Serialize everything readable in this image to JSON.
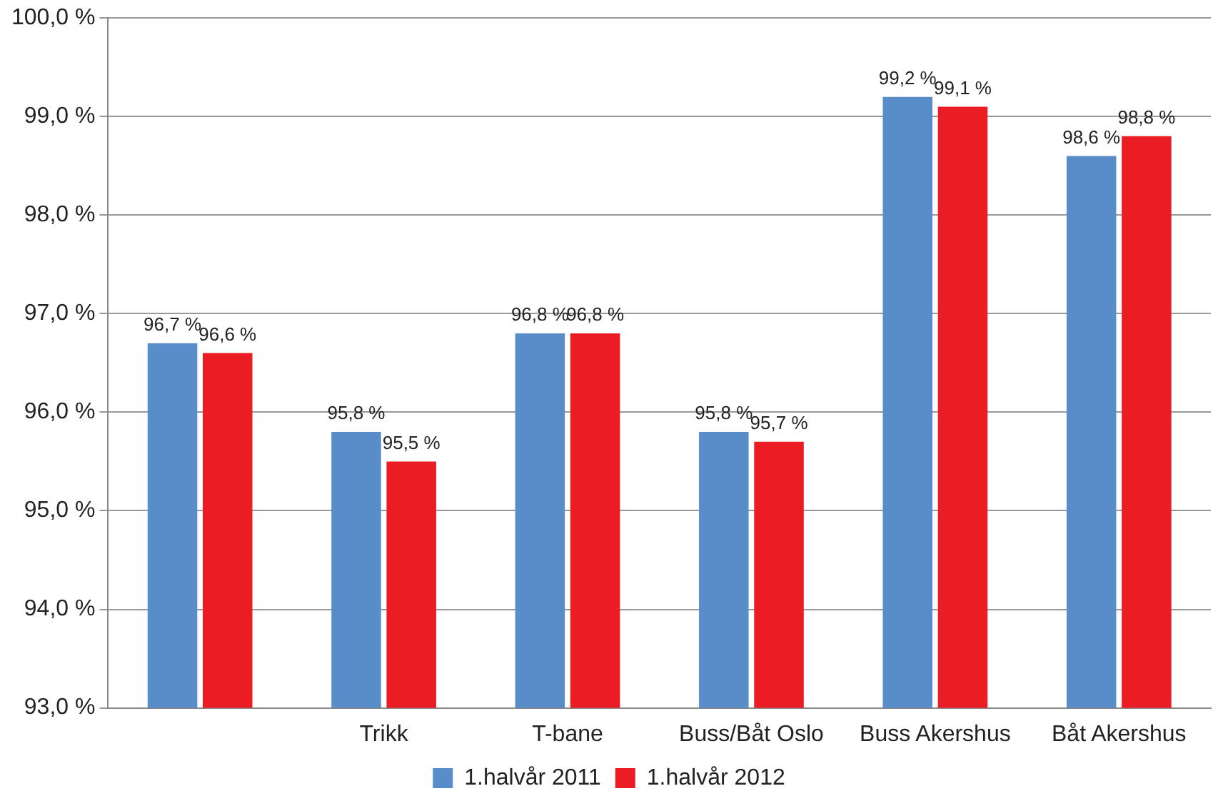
{
  "chart_data": {
    "type": "bar",
    "categories": [
      null,
      "Trikk",
      "T-bane",
      "Buss/Båt Oslo",
      "Buss Akershus",
      "Båt Akershus"
    ],
    "series": [
      {
        "name": "1.halvår 2011",
        "color": "#588dca",
        "values": [
          96.7,
          95.8,
          96.8,
          95.8,
          99.2,
          98.6
        ],
        "value_labels": [
          "96,7 %",
          "95,8 %",
          "96,8 %",
          "95,8 %",
          "99,2 %",
          "98,6 %"
        ]
      },
      {
        "name": "1.halvår 2012",
        "color": "#ec1c24",
        "values": [
          96.6,
          95.5,
          96.8,
          95.7,
          99.1,
          98.8
        ],
        "value_labels": [
          "96,6 %",
          "95,5 %",
          "96,8 %",
          "95,7 %",
          "99,1 %",
          "98,8 %"
        ]
      }
    ],
    "ylim": [
      93,
      100
    ],
    "yticks": [
      {
        "value": 93,
        "label": "93,0 %"
      },
      {
        "value": 94,
        "label": "94,0 %"
      },
      {
        "value": 95,
        "label": "95,0 %"
      },
      {
        "value": 96,
        "label": "96,0 %"
      },
      {
        "value": 97,
        "label": "97,0 %"
      },
      {
        "value": 98,
        "label": "98,0 %"
      },
      {
        "value": 99,
        "label": "99,0 %"
      },
      {
        "value": 100,
        "label": "100,0 %"
      }
    ],
    "grid": "y",
    "legend": "bottom"
  }
}
